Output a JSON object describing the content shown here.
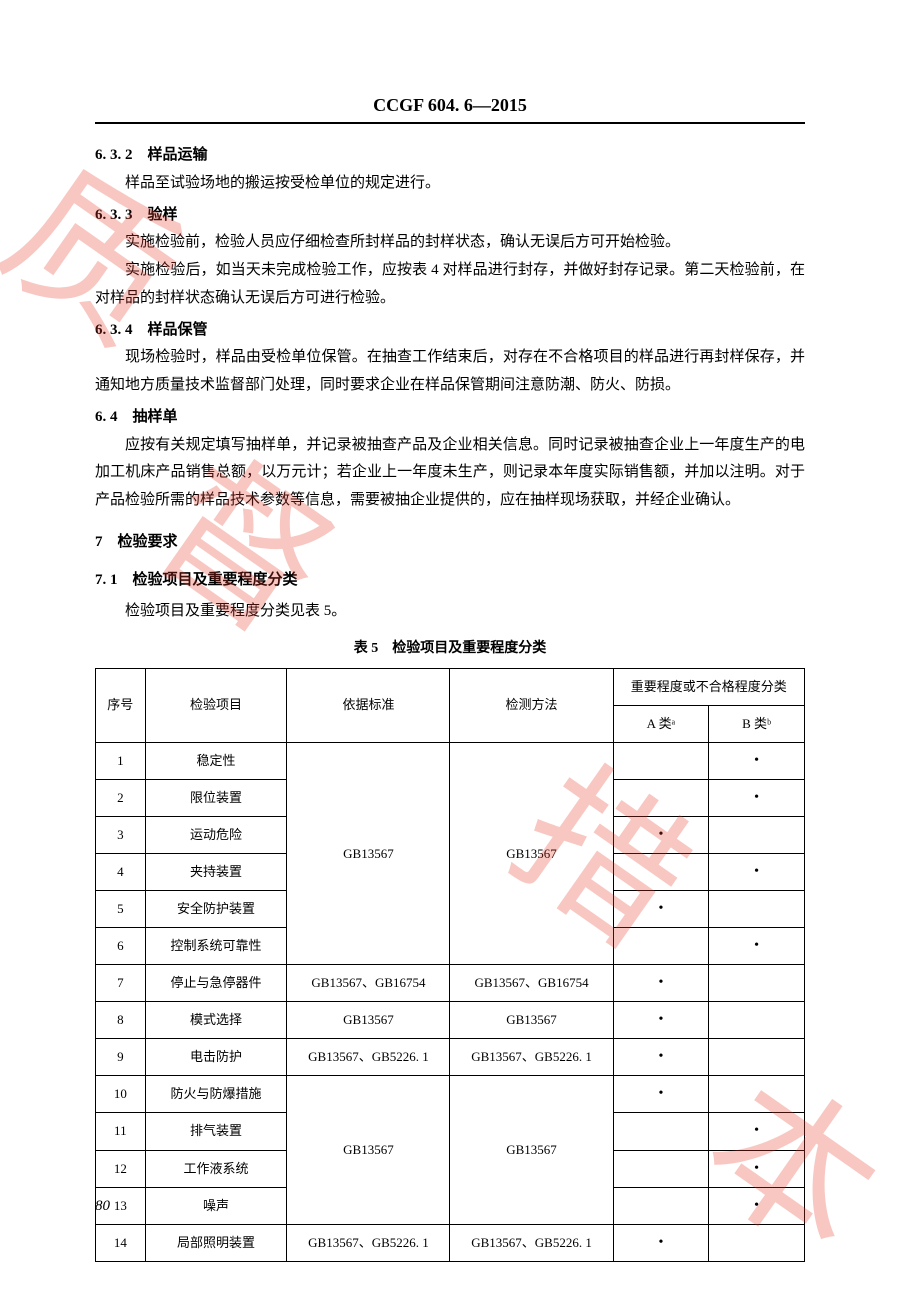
{
  "header": "CCGF 604. 6—2015",
  "page_number": "80",
  "watermark": {
    "c1": "质",
    "c2": "督",
    "c3": "措",
    "c4": "本"
  },
  "sections": {
    "s632": {
      "num": "6. 3. 2　样品运输",
      "p1": "样品至试验场地的搬运按受检单位的规定进行。"
    },
    "s633": {
      "num": "6. 3. 3　验样",
      "p1": "实施检验前，检验人员应仔细检查所封样品的封样状态，确认无误后方可开始检验。",
      "p2": "实施检验后，如当天未完成检验工作，应按表 4 对样品进行封存，并做好封存记录。第二天检验前，在对样品的封样状态确认无误后方可进行检验。"
    },
    "s634": {
      "num": "6. 3. 4　样品保管",
      "p1": "现场检验时，样品由受检单位保管。在抽查工作结束后，对存在不合格项目的样品进行再封样保存，并通知地方质量技术监督部门处理，同时要求企业在样品保管期间注意防潮、防火、防损。"
    },
    "s64": {
      "num": "6. 4　抽样单",
      "p1": "应按有关规定填写抽样单，并记录被抽查产品及企业相关信息。同时记录被抽查企业上一年度生产的电加工机床产品销售总额，以万元计；若企业上一年度未生产，则记录本年度实际销售额，并加以注明。对于产品检验所需的样品技术参数等信息，需要被抽企业提供的，应在抽样现场获取，并经企业确认。"
    },
    "s7": {
      "num": "7　检验要求"
    },
    "s71": {
      "num": "7. 1　检验项目及重要程度分类",
      "p1": "检验项目及重要程度分类见表 5。"
    }
  },
  "table5": {
    "caption": "表 5　检验项目及重要程度分类",
    "headers": {
      "seq": "序号",
      "item": "检验项目",
      "std": "依据标准",
      "method": "检测方法",
      "grade": "重要程度或不合格程度分类",
      "a": "A 类ᵃ",
      "b": "B 类ᵇ"
    },
    "std_block1": "GB13567",
    "method_block1": "GB13567",
    "std_block2": "GB13567",
    "method_block2": "GB13567",
    "rows": [
      {
        "n": "1",
        "item": "稳定性",
        "std": "",
        "method": "",
        "a": "",
        "b": "•"
      },
      {
        "n": "2",
        "item": "限位装置",
        "std": "",
        "method": "",
        "a": "",
        "b": "•"
      },
      {
        "n": "3",
        "item": "运动危险",
        "std": "",
        "method": "",
        "a": "•",
        "b": ""
      },
      {
        "n": "4",
        "item": "夹持装置",
        "std": "",
        "method": "",
        "a": "",
        "b": "•"
      },
      {
        "n": "5",
        "item": "安全防护装置",
        "std": "",
        "method": "",
        "a": "•",
        "b": ""
      },
      {
        "n": "6",
        "item": "控制系统可靠性",
        "std": "",
        "method": "",
        "a": "",
        "b": "•"
      },
      {
        "n": "7",
        "item": "停止与急停器件",
        "std": "GB13567、GB16754",
        "method": "GB13567、GB16754",
        "a": "•",
        "b": ""
      },
      {
        "n": "8",
        "item": "模式选择",
        "std": "GB13567",
        "method": "GB13567",
        "a": "•",
        "b": ""
      },
      {
        "n": "9",
        "item": "电击防护",
        "std": "GB13567、GB5226. 1",
        "method": "GB13567、GB5226. 1",
        "a": "•",
        "b": ""
      },
      {
        "n": "10",
        "item": "防火与防爆措施",
        "std": "",
        "method": "",
        "a": "•",
        "b": ""
      },
      {
        "n": "11",
        "item": "排气装置",
        "std": "",
        "method": "",
        "a": "",
        "b": "•"
      },
      {
        "n": "12",
        "item": "工作液系统",
        "std": "",
        "method": "",
        "a": "",
        "b": "•"
      },
      {
        "n": "13",
        "item": "噪声",
        "std": "",
        "method": "",
        "a": "",
        "b": "•"
      },
      {
        "n": "14",
        "item": "局部照明装置",
        "std": "GB13567、GB5226. 1",
        "method": "GB13567、GB5226. 1",
        "a": "•",
        "b": ""
      }
    ]
  }
}
